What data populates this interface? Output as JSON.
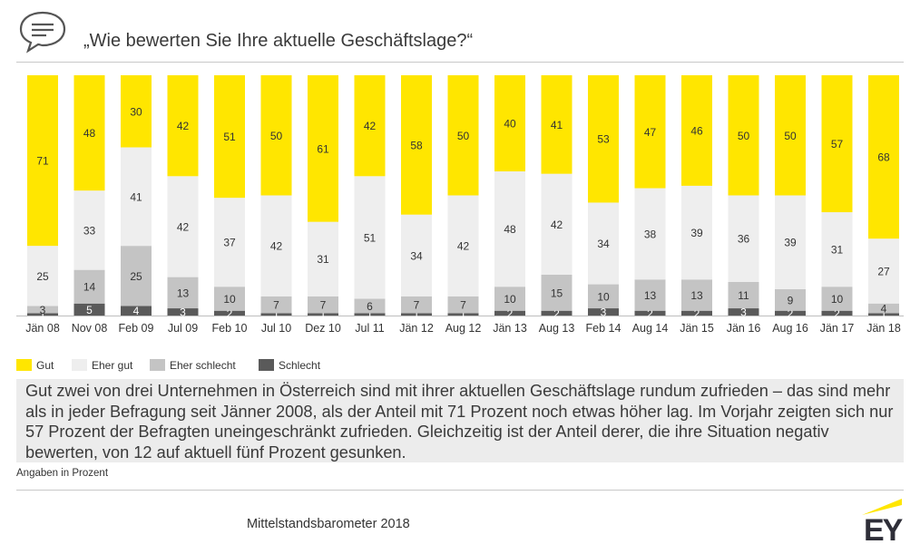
{
  "header": {
    "title": "„Wie bewerten Sie Ihre aktuelle Geschäftslage?“",
    "icon": "speech-bubble-icon"
  },
  "colors": {
    "gut": "#ffe600",
    "eher_gut": "#eeeeee",
    "eher_schlecht": "#c4c4c4",
    "schlecht": "#5a5a5a"
  },
  "legend": {
    "items": [
      {
        "key": "gut",
        "label": "Gut"
      },
      {
        "key": "eher_gut",
        "label": "Eher gut"
      },
      {
        "key": "eher_schlecht",
        "label": "Eher schlecht"
      },
      {
        "key": "schlecht",
        "label": "Schlecht"
      }
    ]
  },
  "chart_data": {
    "type": "bar",
    "stacked": true,
    "orientation": "vertical",
    "categories": [
      "Jän 08",
      "Nov 08",
      "Feb 09",
      "Jul 09",
      "Feb 10",
      "Jul 10",
      "Dez 10",
      "Jul 11",
      "Jän 12",
      "Aug 12",
      "Jän 13",
      "Aug 13",
      "Feb 14",
      "Aug 14",
      "Jän 15",
      "Jän 16",
      "Aug 16",
      "Jän 17",
      "Jän 18"
    ],
    "series": [
      {
        "name": "Schlecht",
        "key": "schlecht",
        "values": [
          1,
          5,
          4,
          3,
          2,
          1,
          1,
          1,
          1,
          1,
          2,
          2,
          3,
          2,
          2,
          3,
          2,
          2,
          1
        ]
      },
      {
        "name": "Eher schlecht",
        "key": "eher_schlecht",
        "values": [
          3,
          14,
          25,
          13,
          10,
          7,
          7,
          6,
          7,
          7,
          10,
          15,
          10,
          13,
          13,
          11,
          9,
          10,
          4
        ]
      },
      {
        "name": "Eher gut",
        "key": "eher_gut",
        "values": [
          25,
          33,
          41,
          42,
          37,
          42,
          31,
          51,
          34,
          42,
          48,
          42,
          34,
          38,
          39,
          36,
          39,
          31,
          27
        ]
      },
      {
        "name": "Gut",
        "key": "gut",
        "values": [
          71,
          48,
          30,
          42,
          51,
          50,
          61,
          42,
          58,
          50,
          40,
          41,
          53,
          47,
          46,
          50,
          50,
          57,
          68
        ]
      }
    ],
    "ylim": [
      0,
      100
    ],
    "grid": false,
    "legend_position": "bottom-left"
  },
  "callout": {
    "text": "Gut zwei von drei Unternehmen in Österreich sind mit ihrer aktuellen Geschäftslage rundum zufrieden – das sind mehr als in jeder Befragung seit Jänner 2008, als der Anteil mit 71 Prozent noch etwas höher lag. Im Vorjahr zeigten sich nur 57 Prozent der Befragten uneingeschränkt zufrieden. Gleichzeitig ist der Anteil derer, die ihre Situation negativ bewerten, von 12 auf aktuell fünf Prozent gesunken."
  },
  "note": "Angaben in Prozent",
  "footer": {
    "source": "Mittelstandsbarometer 2018",
    "logo": "EY"
  }
}
